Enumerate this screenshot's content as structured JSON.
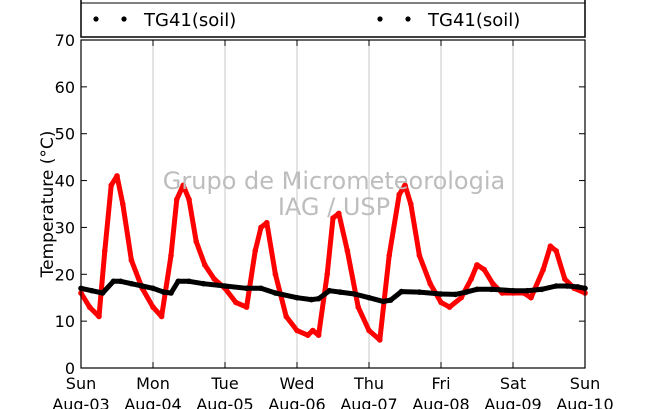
{
  "chart_data": {
    "type": "line",
    "ylabel": "Temperature (°C)",
    "ylim": [
      0,
      70
    ],
    "yticks": [
      0,
      10,
      20,
      30,
      40,
      50,
      60,
      70
    ],
    "xlim": [
      0,
      7
    ],
    "xticks": [
      {
        "pos": 0,
        "day": "Sun",
        "date": "Aug-03"
      },
      {
        "pos": 1,
        "day": "Mon",
        "date": "Aug-04"
      },
      {
        "pos": 2,
        "day": "Tue",
        "date": "Aug-05"
      },
      {
        "pos": 3,
        "day": "Wed",
        "date": "Aug-06"
      },
      {
        "pos": 4,
        "day": "Thu",
        "date": "Aug-07"
      },
      {
        "pos": 5,
        "day": "Fri",
        "date": "Aug-08"
      },
      {
        "pos": 6,
        "day": "Sat",
        "date": "Aug-09"
      },
      {
        "pos": 7,
        "day": "Sun",
        "date": "Aug-10"
      }
    ],
    "grid": "vertical",
    "legend": [
      {
        "label": "TG41(soil)",
        "placement": "top-left"
      },
      {
        "label": "TG41(soil)",
        "placement": "top-right"
      }
    ],
    "watermark": [
      "Grupo de Micrometeorologia",
      "IAG / USP"
    ],
    "series": [
      {
        "color": "#ff0000",
        "x": [
          0,
          0.12,
          0.25,
          0.33,
          0.42,
          0.5,
          0.58,
          0.7,
          0.85,
          1.0,
          1.12,
          1.25,
          1.33,
          1.42,
          1.5,
          1.6,
          1.72,
          1.85,
          2.0,
          2.15,
          2.3,
          2.42,
          2.5,
          2.58,
          2.7,
          2.85,
          3.0,
          3.15,
          3.22,
          3.3,
          3.42,
          3.5,
          3.58,
          3.7,
          3.85,
          4.0,
          4.15,
          4.28,
          4.42,
          4.5,
          4.58,
          4.7,
          4.85,
          5.0,
          5.12,
          5.28,
          5.42,
          5.5,
          5.6,
          5.72,
          5.85,
          6.0,
          6.15,
          6.25,
          6.42,
          6.52,
          6.6,
          6.72,
          6.85,
          7.0
        ],
        "y": [
          16,
          13,
          11,
          25,
          39,
          41,
          35,
          23,
          17,
          13,
          11,
          24,
          36,
          39,
          36,
          27,
          22,
          19,
          17,
          14,
          13,
          25,
          30,
          31,
          20,
          11,
          8,
          7,
          8,
          7,
          20,
          32,
          33,
          25,
          13,
          8,
          6,
          24,
          37,
          39,
          35,
          24,
          18,
          14,
          13,
          15,
          19,
          22,
          21,
          18,
          16,
          16,
          16,
          15,
          21,
          26,
          25,
          19,
          17,
          16
        ]
      },
      {
        "color": "#000000",
        "x": [
          0,
          0.15,
          0.3,
          0.45,
          0.55,
          0.7,
          0.85,
          1.0,
          1.15,
          1.25,
          1.35,
          1.5,
          1.7,
          2.0,
          2.3,
          2.5,
          2.7,
          3.0,
          3.2,
          3.3,
          3.45,
          3.6,
          3.8,
          4.0,
          4.2,
          4.3,
          4.45,
          4.7,
          5.0,
          5.2,
          5.35,
          5.5,
          5.7,
          6.0,
          6.2,
          6.4,
          6.6,
          6.75,
          6.9,
          7.0
        ],
        "y": [
          17,
          16.5,
          16,
          18.5,
          18.5,
          18,
          17.5,
          17,
          16.2,
          16,
          18.5,
          18.5,
          18,
          17.5,
          17,
          17,
          16,
          15,
          14.6,
          14.8,
          16.5,
          16.2,
          15.8,
          15,
          14.2,
          14.5,
          16.3,
          16.2,
          15.8,
          15.7,
          16.2,
          16.8,
          16.8,
          16.5,
          16.5,
          16.8,
          17.5,
          17.5,
          17.3,
          17
        ]
      }
    ]
  }
}
